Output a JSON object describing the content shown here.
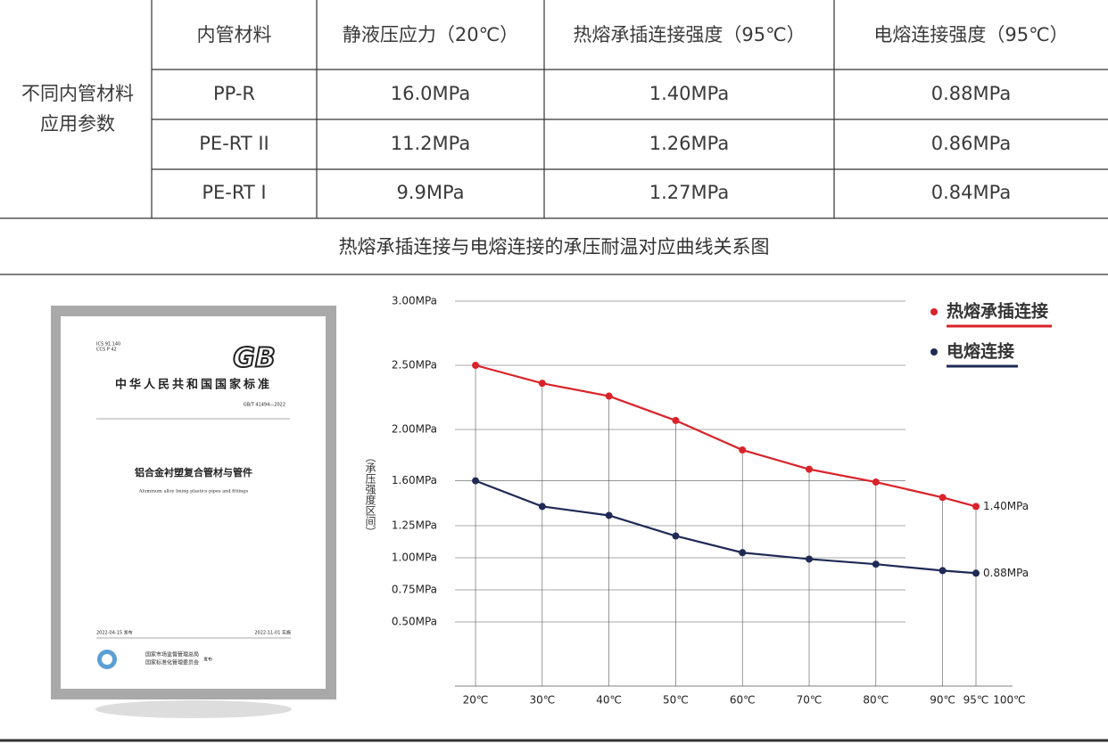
{
  "table": {
    "row_label": [
      "不同内管材料",
      "应用参数"
    ],
    "header": [
      "内管材料",
      "静液压应力（20℃）",
      "热熔承插连接强度（95℃）",
      "电熔连接强度（95℃）"
    ],
    "rows": [
      [
        "PP-R",
        "16.0MPa",
        "1.40MPa",
        "0.88MPa"
      ],
      [
        "PE-RT II",
        "11.2MPa",
        "1.26MPa",
        "0.86MPa"
      ],
      [
        "PE-RT Ⅰ",
        "9.9MPa",
        "1.27MPa",
        "0.84MPa"
      ]
    ]
  },
  "book": {
    "ics": "ICS 91.140",
    "ccs": "CCS P 42",
    "logo": "GB",
    "org": "中华人民共和国国家标准",
    "code": "GB/T 41494—2022",
    "title": "铝合金衬塑复合管材与管件",
    "subtitle": "Aluminum alloy lining plastics pipes and fittings",
    "issued": "2022-04-15 发布",
    "effective": "2022-11-01 实施",
    "issuer": [
      "国家市场监督管理总局",
      "国家标准化管理委员会"
    ],
    "publish": "发布"
  },
  "chart_data": {
    "type": "line",
    "title": "热熔承插连接与电熔连接的承压耐温对应曲线关系图",
    "ylabel": "（承压强度区间）",
    "x": [
      20,
      30,
      40,
      50,
      60,
      70,
      80,
      90,
      95
    ],
    "series": [
      {
        "name": "热熔承插连接",
        "color": "#d9232a",
        "values": [
          2.5,
          2.36,
          2.26,
          2.07,
          1.84,
          1.69,
          1.59,
          1.47,
          1.4
        ],
        "value_labels": [
          null,
          null,
          null,
          null,
          null,
          null,
          null,
          null,
          "1.40MPa"
        ]
      },
      {
        "name": "电熔连接",
        "color": "#1f2a55",
        "values": [
          1.6,
          1.4,
          1.33,
          1.17,
          1.04,
          0.99,
          0.95,
          0.9,
          0.88
        ],
        "value_labels": [
          null,
          null,
          null,
          null,
          null,
          null,
          null,
          null,
          "0.88MPa"
        ]
      }
    ],
    "xlim": [
      17,
      100
    ],
    "xticks": [
      {
        "value": 20,
        "label": "20℃"
      },
      {
        "value": 30,
        "label": "30℃"
      },
      {
        "value": 40,
        "label": "40℃"
      },
      {
        "value": 50,
        "label": "50℃"
      },
      {
        "value": 60,
        "label": "60℃"
      },
      {
        "value": 70,
        "label": "70℃"
      },
      {
        "value": 80,
        "label": "80℃"
      },
      {
        "value": 90,
        "label": "90℃"
      },
      {
        "value": 95,
        "label": "95℃"
      },
      {
        "value": 100,
        "label": "100℃"
      }
    ],
    "ylim": [
      0,
      3
    ],
    "yticks": [
      {
        "value": 0.5,
        "label": "0.50MPa"
      },
      {
        "value": 0.75,
        "label": "0.75MPa"
      },
      {
        "value": 1,
        "label": "1.00MPa"
      },
      {
        "value": 1.25,
        "label": "1.25MPa"
      },
      {
        "value": 1.6,
        "label": "1.60MPa"
      },
      {
        "value": 2,
        "label": "2.00MPa"
      },
      {
        "value": 2.5,
        "label": "2.50MPa"
      },
      {
        "value": 3,
        "label": "3.00MPa"
      }
    ],
    "grid": true,
    "legend": "top-right"
  }
}
